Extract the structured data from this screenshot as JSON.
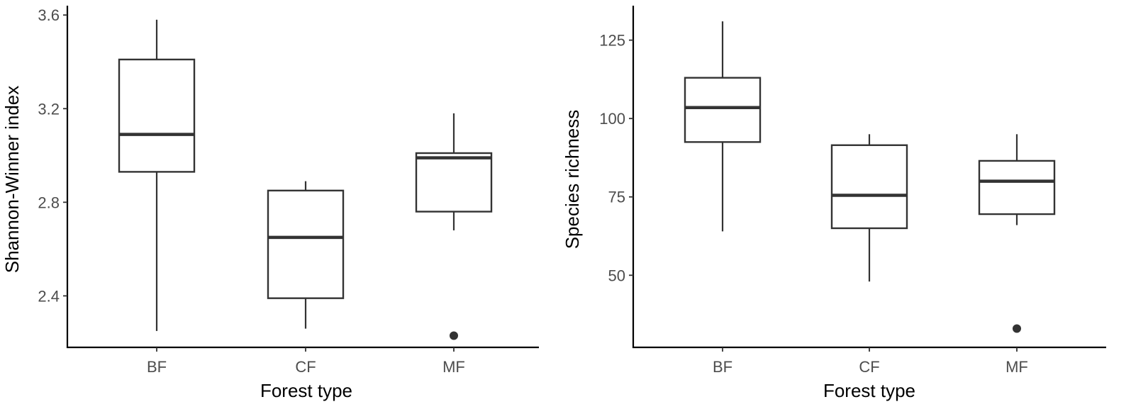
{
  "chart_data": [
    {
      "type": "box",
      "xlabel": "Forest type",
      "ylabel": "Shannon-Winner index",
      "categories": [
        "BF",
        "CF",
        "MF"
      ],
      "ylim": [
        2.18,
        3.64
      ],
      "yticks": [
        2.4,
        2.8,
        3.2,
        3.6
      ],
      "ytick_labels": [
        "2.4",
        "2.8",
        "3.2",
        "3.6"
      ],
      "boxes": [
        {
          "category": "BF",
          "min": 2.25,
          "q1": 2.93,
          "median": 3.09,
          "q3": 3.41,
          "max": 3.58,
          "outliers": []
        },
        {
          "category": "CF",
          "min": 2.26,
          "q1": 2.39,
          "median": 2.65,
          "q3": 2.85,
          "max": 2.89,
          "outliers": []
        },
        {
          "category": "MF",
          "min": 2.68,
          "q1": 2.76,
          "median": 2.99,
          "q3": 3.01,
          "max": 3.18,
          "outliers": [
            2.23
          ]
        }
      ],
      "grid": false
    },
    {
      "type": "box",
      "xlabel": "Forest type",
      "ylabel": "Species richness",
      "categories": [
        "BF",
        "CF",
        "MF"
      ],
      "ylim": [
        27,
        136
      ],
      "yticks": [
        50,
        75,
        100,
        125
      ],
      "ytick_labels": [
        "50",
        "75",
        "100",
        "125"
      ],
      "boxes": [
        {
          "category": "BF",
          "min": 64,
          "q1": 92.5,
          "median": 103.5,
          "q3": 113,
          "max": 131,
          "outliers": []
        },
        {
          "category": "CF",
          "min": 48,
          "q1": 65,
          "median": 75.5,
          "q3": 91.5,
          "max": 95,
          "outliers": []
        },
        {
          "category": "MF",
          "min": 66,
          "q1": 69.5,
          "median": 80,
          "q3": 86.5,
          "max": 95,
          "outliers": [
            33
          ]
        }
      ],
      "grid": false
    }
  ],
  "colors": {
    "box_stroke": "#333333",
    "box_fill": "#ffffff",
    "axis": "#000000",
    "tick_label": "#4d4d4d",
    "outlier": "#333333"
  }
}
